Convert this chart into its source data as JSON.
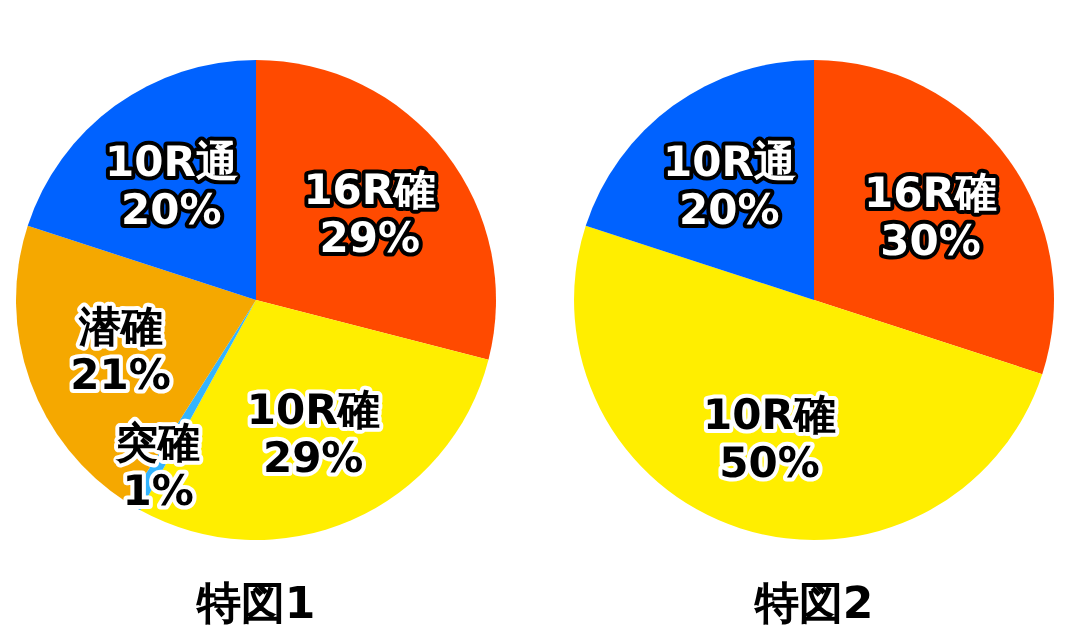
{
  "chart_data": [
    {
      "type": "pie",
      "title": "特図1",
      "categories": [
        "16R確",
        "10R確",
        "突確",
        "潜確",
        "10R通"
      ],
      "values": [
        29,
        29,
        1,
        21,
        20
      ],
      "value_labels": [
        "29%",
        "29%",
        "1%",
        "21%",
        "20%"
      ],
      "colors": [
        "#ff4a00",
        "#ffee00",
        "#33b4ff",
        "#f5a800",
        "#0062ff"
      ]
    },
    {
      "type": "pie",
      "title": "特図2",
      "categories": [
        "16R確",
        "10R確",
        "10R通"
      ],
      "values": [
        30,
        50,
        20
      ],
      "value_labels": [
        "30%",
        "50%",
        "20%"
      ],
      "colors": [
        "#ff4a00",
        "#ffee00",
        "#0062ff"
      ]
    }
  ]
}
